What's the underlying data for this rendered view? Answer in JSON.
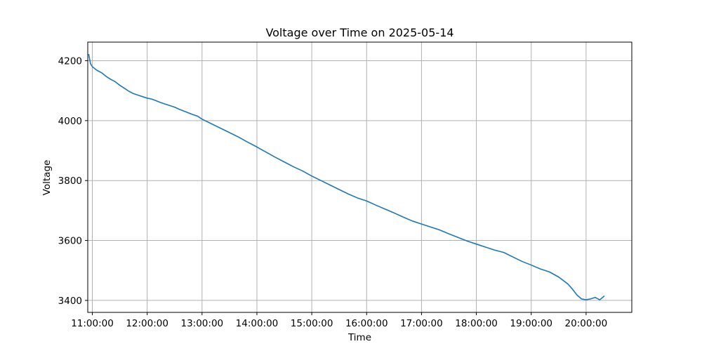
{
  "chart_data": {
    "type": "line",
    "title": "Voltage over Time on 2025-05-14",
    "xlabel": "Time",
    "ylabel": "Voltage",
    "x_ticks": [
      "11:00:00",
      "12:00:00",
      "13:00:00",
      "14:00:00",
      "15:00:00",
      "16:00:00",
      "17:00:00",
      "18:00:00",
      "19:00:00",
      "20:00:00"
    ],
    "y_ticks": [
      3400,
      3600,
      3800,
      4000,
      4200
    ],
    "xlim": [
      "10:55:00",
      "20:50:00"
    ],
    "ylim": [
      3360,
      4262
    ],
    "grid": true,
    "series": [
      {
        "color": "#1f77b4",
        "x": [
          "10:56:00",
          "10:58:00",
          "11:00:00",
          "11:05:00",
          "11:10:00",
          "11:15:00",
          "11:20:00",
          "11:25:00",
          "11:30:00",
          "11:35:00",
          "11:40:00",
          "11:45:00",
          "11:50:00",
          "11:55:00",
          "12:00:00",
          "12:05:00",
          "12:10:00",
          "12:15:00",
          "12:20:00",
          "12:25:00",
          "12:30:00",
          "12:35:00",
          "12:40:00",
          "12:45:00",
          "12:50:00",
          "12:55:00",
          "13:00:00",
          "13:10:00",
          "13:20:00",
          "13:30:00",
          "13:40:00",
          "13:50:00",
          "14:00:00",
          "14:10:00",
          "14:20:00",
          "14:30:00",
          "14:40:00",
          "14:50:00",
          "15:00:00",
          "15:10:00",
          "15:20:00",
          "15:30:00",
          "15:40:00",
          "15:50:00",
          "16:00:00",
          "16:10:00",
          "16:20:00",
          "16:30:00",
          "16:40:00",
          "16:50:00",
          "17:00:00",
          "17:10:00",
          "17:20:00",
          "17:30:00",
          "17:40:00",
          "17:50:00",
          "18:00:00",
          "18:10:00",
          "18:20:00",
          "18:30:00",
          "18:40:00",
          "18:50:00",
          "19:00:00",
          "19:10:00",
          "19:20:00",
          "19:30:00",
          "19:40:00",
          "19:45:00",
          "19:50:00",
          "19:55:00",
          "20:00:00",
          "20:05:00",
          "20:10:00",
          "20:15:00",
          "20:20:00"
        ],
        "y": [
          4222,
          4190,
          4180,
          4168,
          4160,
          4148,
          4138,
          4130,
          4118,
          4108,
          4098,
          4090,
          4085,
          4080,
          4075,
          4072,
          4066,
          4060,
          4055,
          4050,
          4045,
          4038,
          4032,
          4026,
          4020,
          4015,
          4005,
          3990,
          3975,
          3960,
          3945,
          3928,
          3912,
          3895,
          3878,
          3862,
          3846,
          3832,
          3815,
          3800,
          3785,
          3770,
          3755,
          3742,
          3732,
          3718,
          3705,
          3692,
          3678,
          3665,
          3655,
          3645,
          3635,
          3622,
          3610,
          3598,
          3588,
          3578,
          3568,
          3560,
          3545,
          3530,
          3518,
          3505,
          3495,
          3478,
          3455,
          3438,
          3418,
          3405,
          3402,
          3405,
          3410,
          3402,
          3415
        ]
      }
    ]
  }
}
